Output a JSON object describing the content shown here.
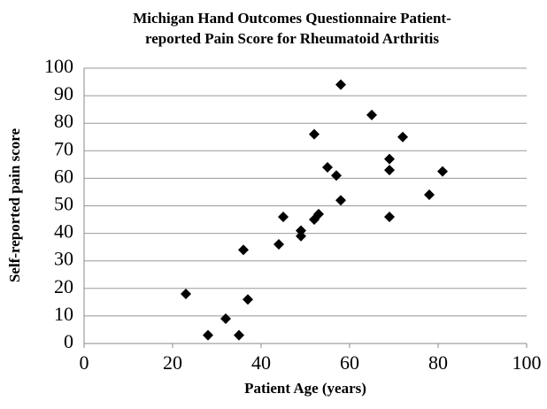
{
  "chart_data": {
    "type": "scatter",
    "title": [
      "Michigan Hand Outcomes Questionnaire Patient-",
      "reported Pain Score for Rheumatoid Arthritis"
    ],
    "x_label": "Patient Age (years)",
    "y_label": "Self-reported pain score",
    "x": [
      23,
      28,
      32,
      35,
      36,
      37,
      44,
      45,
      49,
      49,
      52,
      52,
      53,
      55,
      57,
      58,
      58,
      65,
      69,
      69,
      69,
      72,
      78,
      81
    ],
    "values": [
      18,
      3,
      9,
      3,
      34,
      16,
      36,
      46,
      41,
      39,
      76,
      45,
      47,
      64,
      61,
      94,
      52,
      83,
      67,
      63,
      46,
      75,
      54,
      62.5
    ],
    "color": "#000000",
    "xlim": [
      0,
      100
    ],
    "xticks": [
      0,
      20,
      40,
      60,
      80,
      100
    ],
    "ylim": [
      0,
      100
    ],
    "yticks": [
      0,
      10,
      20,
      30,
      40,
      50,
      60,
      70,
      80,
      90,
      100
    ],
    "grid": true
  }
}
